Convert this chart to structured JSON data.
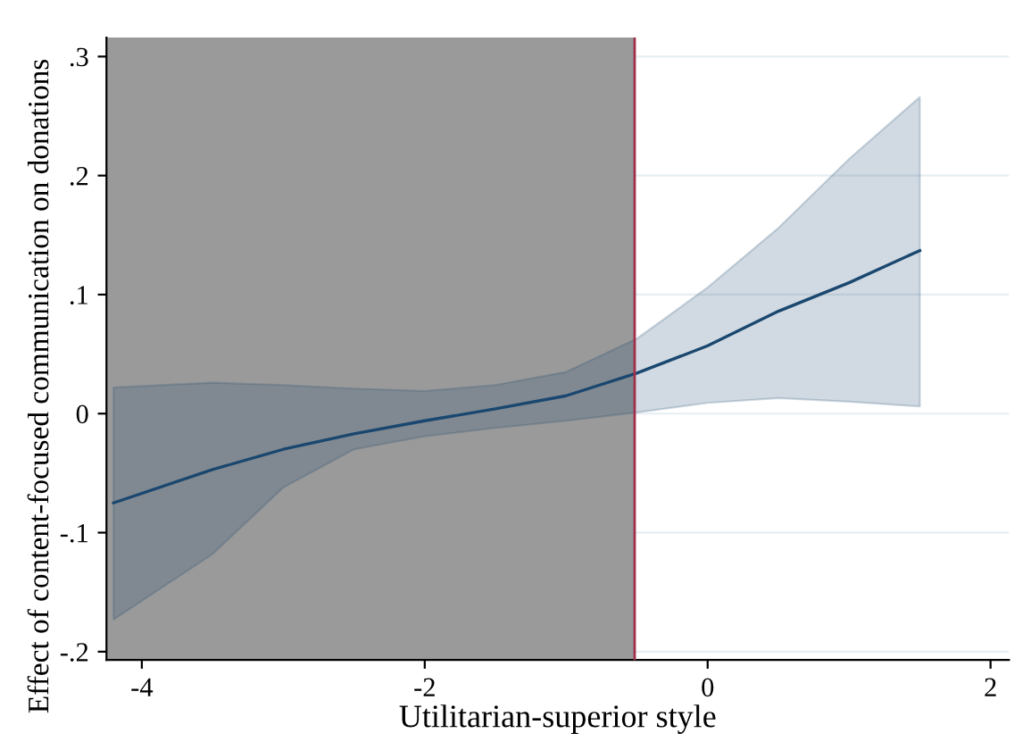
{
  "chart_data": {
    "type": "line",
    "xlabel": "Utilitarian-superior style",
    "ylabel": "Effect of content-focused communication on donations",
    "xlim": [
      -4.25,
      2.13
    ],
    "ylim": [
      -0.207,
      0.316
    ],
    "xticks": [
      -4,
      -2,
      0,
      2
    ],
    "yticks": [
      {
        "value": -0.2,
        "label": "-.2"
      },
      {
        "value": -0.1,
        "label": "-.1"
      },
      0,
      {
        "value": 0.1,
        "label": ".1"
      },
      {
        "value": 0.2,
        "label": ".2"
      },
      {
        "value": 0.3,
        "label": ".3"
      }
    ],
    "grid": "y",
    "marker": "none",
    "line_style": "solid",
    "series": [
      {
        "color": "#1a476f",
        "x": [
          -4.2,
          -3.5,
          -3,
          -2.5,
          -2,
          -1.5,
          -1,
          -0.5,
          0,
          0.5,
          1,
          1.5
        ],
        "values": [
          -0.075,
          -0.047,
          -0.03,
          -0.017,
          -0.006,
          0.004,
          0.015,
          0.034,
          0.057,
          0.086,
          0.11,
          0.137
        ],
        "lower": [
          -0.173,
          -0.118,
          -0.062,
          -0.03,
          -0.019,
          -0.012,
          -0.006,
          0.001,
          0.009,
          0.013,
          0.01,
          0.006
        ],
        "upper": [
          0.022,
          0.026,
          0.024,
          0.021,
          0.019,
          0.024,
          0.035,
          0.063,
          0.106,
          0.156,
          0.214,
          0.266
        ]
      }
    ],
    "bands": [
      {
        "axis": "x",
        "from": -4.25,
        "to": -0.516,
        "color": "#9a9a9a"
      }
    ],
    "ref_lines": [
      {
        "axis": "x",
        "value": -0.516,
        "color": "#a0304a"
      }
    ]
  }
}
